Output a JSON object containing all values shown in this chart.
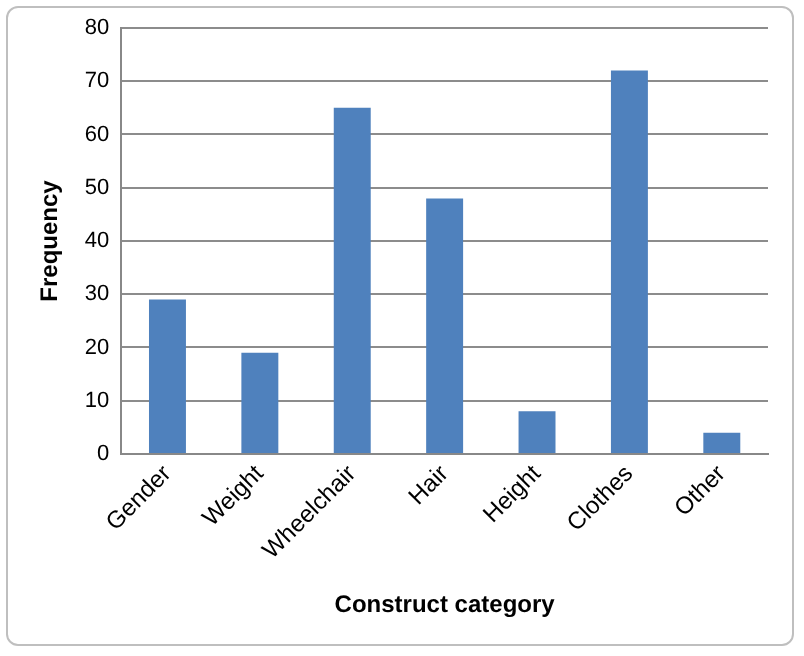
{
  "chart_data": {
    "type": "bar",
    "xlabel": "Construct category",
    "ylabel": "Frequency",
    "categories": [
      "Gender",
      "Weight",
      "Wheelchair",
      "Hair",
      "Height",
      "Clothes",
      "Other"
    ],
    "values": [
      29,
      19,
      65,
      48,
      8,
      72,
      4
    ],
    "color": "#4f81bd",
    "ylim": [
      0,
      80
    ],
    "yticks": [
      0,
      10,
      20,
      30,
      40,
      50,
      60,
      70,
      80
    ],
    "grid": "y"
  }
}
